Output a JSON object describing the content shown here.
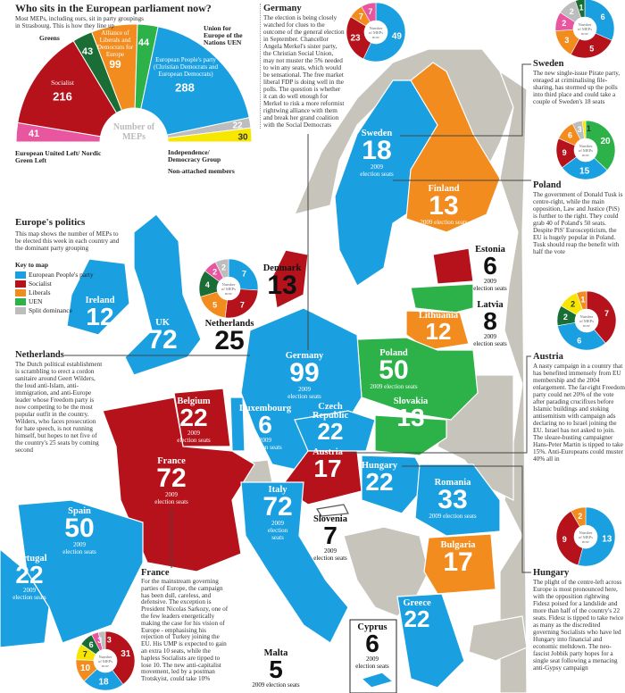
{
  "colors": {
    "epp": "#1a9fe0",
    "socialist": "#b5121b",
    "liberal": "#f28c1e",
    "uen": "#2db24a",
    "greens": "#1a6e35",
    "gue": "#e8569f",
    "ind": "#bdbdbd",
    "na": "#f7e600",
    "land": "#c6c4bb"
  },
  "parliament": {
    "title": "Who sits in the European parliament now?",
    "subtitle": "Most MEPs, including ours, sit in party groupings in Strasbourg. This is how they line up",
    "center": "Number of MEPs",
    "groups": [
      {
        "name": "European United Left/ Nordic Green Left",
        "seats": 41,
        "color": "gue"
      },
      {
        "name": "Socialist",
        "seats": 216,
        "color": "socialist"
      },
      {
        "name": "Greens",
        "seats": 43,
        "color": "greens"
      },
      {
        "name": "Alliance of Liberals and Democrats for Europe",
        "seats": 99,
        "color": "liberal"
      },
      {
        "name": "Union for Europe of the Nations UEN",
        "seats": 44,
        "color": "uen"
      },
      {
        "name": "European People's party (Christian Democrats and European Democrats)",
        "seats": 288,
        "color": "epp"
      },
      {
        "name": "Independence/ Democracy Group",
        "seats": 22,
        "color": "ind"
      },
      {
        "name": "Non-attached members",
        "seats": 30,
        "color": "na"
      }
    ]
  },
  "intro": {
    "title": "Europe's politics",
    "text": "This map shows the number of MEPs to be elected this week in each country and the dominant party grouping",
    "key_title": "Key to map",
    "key": [
      {
        "label": "European People's party",
        "color": "epp"
      },
      {
        "label": "Socialist",
        "color": "socialist"
      },
      {
        "label": "Liberals",
        "color": "liberal"
      },
      {
        "label": "UEN",
        "color": "uen"
      },
      {
        "label": "Split dominance",
        "color": "ind"
      }
    ]
  },
  "pie_center": "Number of MEPs now",
  "pies": {
    "germany": [
      [
        49,
        "epp"
      ],
      [
        23,
        "socialist"
      ],
      [
        7,
        "liberal"
      ],
      [
        7,
        "gue"
      ]
    ],
    "sweden": [
      [
        6,
        "epp"
      ],
      [
        5,
        "socialist"
      ],
      [
        3,
        "liberal"
      ],
      [
        2,
        "gue"
      ],
      [
        2,
        "ind"
      ],
      [
        1,
        "greens"
      ]
    ],
    "poland": [
      [
        20,
        "uen"
      ],
      [
        15,
        "epp"
      ],
      [
        9,
        "socialist"
      ],
      [
        6,
        "liberal"
      ],
      [
        3,
        "ind"
      ],
      [
        1,
        "na"
      ]
    ],
    "austria": [
      [
        7,
        "socialist"
      ],
      [
        6,
        "epp"
      ],
      [
        2,
        "greens"
      ],
      [
        2,
        "na"
      ],
      [
        1,
        "liberal"
      ]
    ],
    "hungary": [
      [
        13,
        "epp"
      ],
      [
        9,
        "socialist"
      ],
      [
        2,
        "liberal"
      ]
    ],
    "netherlands": [
      [
        7,
        "epp"
      ],
      [
        7,
        "socialist"
      ],
      [
        5,
        "liberal"
      ],
      [
        4,
        "greens"
      ],
      [
        2,
        "gue"
      ],
      [
        2,
        "ind"
      ]
    ],
    "france": [
      [
        31,
        "socialist"
      ],
      [
        18,
        "epp"
      ],
      [
        10,
        "liberal"
      ],
      [
        7,
        "na"
      ],
      [
        6,
        "greens"
      ],
      [
        3,
        "gue"
      ],
      [
        3,
        "ind"
      ]
    ]
  },
  "seats_caption": "2009 election seats",
  "countries": {
    "ireland": [
      "Ireland",
      12
    ],
    "uk": [
      "UK",
      72
    ],
    "denmark": [
      "Denmark",
      13
    ],
    "sweden": [
      "Sweden",
      18
    ],
    "finland": [
      "Finland",
      13
    ],
    "estonia": [
      "Estonia",
      6
    ],
    "latvia": [
      "Latvia",
      8
    ],
    "lithuania": [
      "Lithuania",
      12
    ],
    "poland": [
      "Poland",
      50
    ],
    "germany": [
      "Germany",
      99
    ],
    "netherlands": [
      "Netherlands",
      25
    ],
    "belgium": [
      "Belgium",
      22
    ],
    "luxembourg": [
      "Luxembourg",
      6
    ],
    "czech": [
      "Czech Republic",
      22
    ],
    "slovakia": [
      "Slovakia",
      13
    ],
    "austria": [
      "Austria",
      17
    ],
    "hungary": [
      "Hungary",
      22
    ],
    "romania": [
      "Romania",
      33
    ],
    "bulgaria": [
      "Bulgaria",
      17
    ],
    "greece": [
      "Greece",
      22
    ],
    "slovenia": [
      "Slovenia",
      7
    ],
    "italy": [
      "Italy",
      72
    ],
    "france": [
      "France",
      72
    ],
    "spain": [
      "Spain",
      50
    ],
    "portugal": [
      "Portugal",
      22
    ],
    "malta": [
      "Malta",
      5
    ],
    "cyprus": [
      "Cyprus",
      6
    ]
  },
  "stories": {
    "germany": {
      "title": "Germany",
      "text": "The election is being closely watched for clues to the outcome of the general election in September. Chancellor Angela Merkel's sister party, the Christian Social Union, may not muster the 5% needed to win any seats, which would be sensational. The free market liberal FDP is doing well in the polls. The question is whether it can do well enough for Merkel to risk a more reformist rightwing alliance with them and break her grand coalition with the Social Democrats"
    },
    "sweden": {
      "title": "Sweden",
      "text": "The new single-issue Pirate party, enraged at criminalising file-sharing, has stormed up the polls into third place and could take a couple of Sweden's 18 seats"
    },
    "poland": {
      "title": "Poland",
      "text": "The government of Donald Tusk is centre-right, while the main opposition, Law and Justice (PiS) is further to the right. They could grab 40 of Poland's 50 seats. Despite PiS' Euroscepticism, the EU is hugely popular in Poland. Tusk should reap the benefit with half the vote"
    },
    "austria": {
      "title": "Austria",
      "text": "A nasty campaign in a country that has benefited immensely from EU membership and the 2004 enlargement. The far-right Freedom party could net 20% of the vote after parading crucifixes before Islamic buildings and stoking antisemitism with campaign ads declaring no to Israel joining the EU. Israel has not asked to join. The sleaze-busting campaigner Hans-Peter Martin is tipped to take 15%. Anti-Europeans could muster 40% all in"
    },
    "hungary": {
      "title": "Hungary",
      "text": "The plight of the centre-left across Europe is most pronounced here, with the opposition rightwing Fidesz poised for a landslide and more than half of the country's 22 seats. Fidesz is tipped to take twice as many as the discredited governing Socialists who have led Hungary into financial and economic meltdown. The neo-fascist Jobbik party hopes for a single seat following a menacing anti-Gypsy campaign"
    },
    "netherlands": {
      "title": "Netherlands",
      "text": "The Dutch political establishment is scrambling to erect a cordon sanitaire around Geert Wilders, the loud anti-Islam, anti-immigration, and anti-Europe leader whose Freedom party is now competing to be the most popular outfit in the country. Wilders, who faces prosecution for hate speech, is not running himself, but hopes to net five of the country's 25 seats by coming second"
    },
    "france": {
      "title": "France",
      "text": "For the mainstream governing parties of Europe, the campaign has been dull, careless, and defensive. The exception is President Nicolas Sarkozy, one of the few leaders energetically making the case for his vision of Europe - emphasising his rejection of Turkey joining the EU. His UMP is expected to gain an extra 10 seats, while the hapless Socialists are tipped to lose 10. The new anti-capitalist movement, led by a postman Trotskyist, could take 10%"
    }
  }
}
